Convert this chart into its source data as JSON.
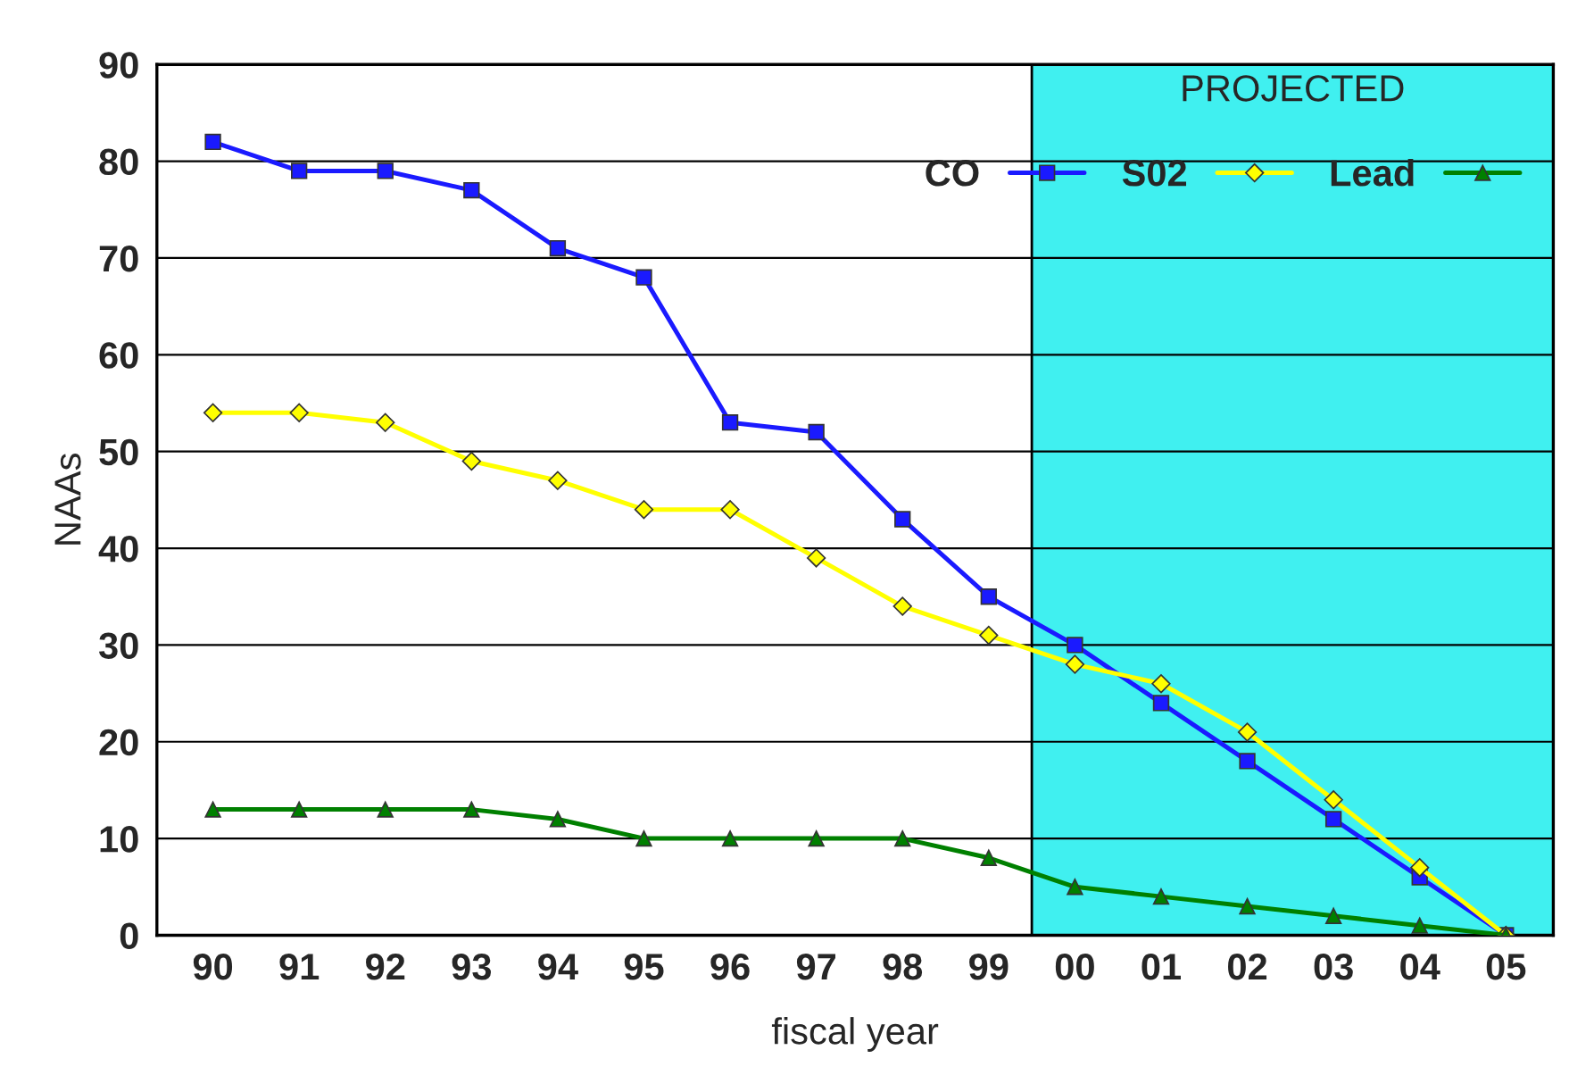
{
  "chart_data": {
    "type": "line",
    "xlabel": "fiscal year",
    "ylabel": "NAAs",
    "categories": [
      "90",
      "91",
      "92",
      "93",
      "94",
      "95",
      "96",
      "97",
      "98",
      "99",
      "00",
      "01",
      "02",
      "03",
      "04",
      "05"
    ],
    "series": [
      {
        "name": "CO",
        "color": "#1a1aff",
        "marker": "square",
        "values": [
          82,
          79,
          79,
          77,
          71,
          68,
          53,
          52,
          43,
          35,
          30,
          24,
          18,
          12,
          6,
          0
        ]
      },
      {
        "name": "S02",
        "color": "#ffff00",
        "marker": "diamond",
        "values": [
          54,
          54,
          53,
          49,
          47,
          44,
          44,
          39,
          34,
          31,
          28,
          26,
          21,
          14,
          7,
          0
        ]
      },
      {
        "name": "Lead",
        "color": "#008000",
        "marker": "triangle",
        "values": [
          13,
          13,
          13,
          13,
          12,
          10,
          10,
          10,
          10,
          8,
          5,
          4,
          3,
          2,
          1,
          0
        ]
      }
    ],
    "ylim": [
      0,
      90
    ],
    "yticks": [
      0,
      10,
      20,
      30,
      40,
      50,
      60,
      70,
      80,
      90
    ],
    "grid": "y",
    "legend": "top right",
    "line_style": "solid",
    "bands": [
      {
        "axis": "x",
        "from": "00",
        "to": "05",
        "label": "PROJECTED",
        "color": "#40f0f0"
      }
    ]
  }
}
